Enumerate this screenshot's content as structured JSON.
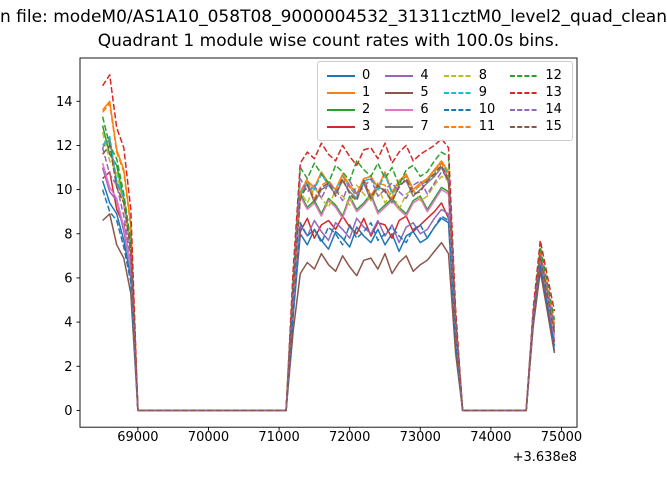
{
  "chart_data": {
    "type": "line",
    "suptitle": "n file: modeM0/AS1A10_058T08_9000004532_31311cztM0_level2_quad_clean",
    "title": "Quadrant 1 module wise count rates with 100.0s bins.",
    "xlabel": "",
    "ylabel": "",
    "x_axis_offset_label": "+3.638e8",
    "xlim": [
      68180,
      75220
    ],
    "ylim": [
      -0.76,
      15.96
    ],
    "xticks": [
      69000,
      70000,
      71000,
      72000,
      73000,
      74000,
      75000
    ],
    "yticks": [
      0,
      2,
      4,
      6,
      8,
      10,
      12,
      14
    ],
    "grid": false,
    "legend": {
      "position": "upper right",
      "columns": 4
    },
    "x": [
      68500,
      68600,
      68700,
      68800,
      68900,
      69000,
      69100,
      69200,
      69300,
      69400,
      69500,
      69600,
      69700,
      69800,
      69900,
      70000,
      70100,
      70200,
      70300,
      70400,
      70500,
      70600,
      70700,
      70800,
      70900,
      71000,
      71100,
      71200,
      71300,
      71400,
      71500,
      71600,
      71700,
      71800,
      71900,
      72000,
      72100,
      72200,
      72300,
      72400,
      72500,
      72600,
      72700,
      72800,
      72900,
      73000,
      73100,
      73200,
      73300,
      73400,
      73500,
      73600,
      73700,
      73800,
      73900,
      74000,
      74100,
      74200,
      74300,
      74400,
      74500,
      74600,
      74700,
      74800,
      74900
    ],
    "series": [
      {
        "name": "0",
        "color": "#1f77b4",
        "linestyle": "solid",
        "values": [
          10.4,
          9.4,
          8.9,
          7.7,
          6.0,
          0,
          0,
          0,
          0,
          0,
          0,
          0,
          0,
          0,
          0,
          0,
          0,
          0,
          0,
          0,
          0,
          0,
          0,
          0,
          0,
          0,
          0,
          4.3,
          8.0,
          7.5,
          8.2,
          7.7,
          7.3,
          8.1,
          7.8,
          7.4,
          8.3,
          7.9,
          7.6,
          8.2,
          7.5,
          8.0,
          7.2,
          7.9,
          8.1,
          7.6,
          7.8,
          8.3,
          8.7,
          8.5,
          3.1,
          0,
          0,
          0,
          0,
          0,
          0,
          0,
          0,
          0,
          0,
          4.0,
          6.6,
          4.7,
          2.7
        ]
      },
      {
        "name": "1",
        "color": "#ff7f0e",
        "linestyle": "solid",
        "values": [
          13.6,
          14.0,
          11.8,
          10.9,
          8.4,
          0,
          0,
          0,
          0,
          0,
          0,
          0,
          0,
          0,
          0,
          0,
          0,
          0,
          0,
          0,
          0,
          0,
          0,
          0,
          0,
          0,
          0,
          5.7,
          9.9,
          10.4,
          10.1,
          10.8,
          10.3,
          10.0,
          10.7,
          10.2,
          9.8,
          10.5,
          10.6,
          10.1,
          10.8,
          9.9,
          10.4,
          10.7,
          10.0,
          10.3,
          10.5,
          10.9,
          11.3,
          10.8,
          4.1,
          0,
          0,
          0,
          0,
          0,
          0,
          0,
          0,
          0,
          0,
          4.3,
          7.2,
          5.6,
          3.9
        ]
      },
      {
        "name": "2",
        "color": "#2ca02c",
        "linestyle": "solid",
        "values": [
          12.9,
          11.6,
          11.1,
          9.5,
          7.5,
          0,
          0,
          0,
          0,
          0,
          0,
          0,
          0,
          0,
          0,
          0,
          0,
          0,
          0,
          0,
          0,
          0,
          0,
          0,
          0,
          0,
          0,
          5.1,
          9.8,
          9.2,
          9.5,
          8.9,
          9.6,
          9.3,
          8.8,
          9.7,
          9.1,
          9.4,
          9.8,
          9.0,
          9.3,
          9.6,
          9.2,
          8.9,
          9.5,
          9.7,
          9.1,
          9.6,
          10.1,
          9.9,
          3.7,
          0,
          0,
          0,
          0,
          0,
          0,
          0,
          0,
          0,
          0,
          4.1,
          6.9,
          5.2,
          3.5
        ]
      },
      {
        "name": "3",
        "color": "#d62728",
        "linestyle": "solid",
        "values": [
          10.5,
          10.8,
          9.1,
          8.4,
          6.5,
          0,
          0,
          0,
          0,
          0,
          0,
          0,
          0,
          0,
          0,
          0,
          0,
          0,
          0,
          0,
          0,
          0,
          0,
          0,
          0,
          0,
          0,
          4.6,
          8.1,
          8.7,
          7.8,
          8.4,
          8.6,
          8.2,
          8.8,
          8.3,
          8.0,
          8.7,
          7.9,
          8.5,
          8.4,
          7.8,
          8.6,
          8.8,
          8.1,
          8.4,
          8.7,
          9.0,
          9.4,
          8.7,
          3.3,
          0,
          0,
          0,
          0,
          0,
          0,
          0,
          0,
          0,
          0,
          4.0,
          6.7,
          4.9,
          3.1
        ]
      },
      {
        "name": "4",
        "color": "#9467bd",
        "linestyle": "solid",
        "values": [
          11.0,
          9.9,
          9.5,
          8.1,
          6.4,
          0,
          0,
          0,
          0,
          0,
          0,
          0,
          0,
          0,
          0,
          0,
          0,
          0,
          0,
          0,
          0,
          0,
          0,
          0,
          0,
          0,
          0,
          4.5,
          8.4,
          7.9,
          8.6,
          8.1,
          7.7,
          8.5,
          8.2,
          7.8,
          8.7,
          8.3,
          8.0,
          8.6,
          7.9,
          8.4,
          7.6,
          8.3,
          8.5,
          8.0,
          8.2,
          8.7,
          9.1,
          8.9,
          3.3,
          0,
          0,
          0,
          0,
          0,
          0,
          0,
          0,
          0,
          0,
          4.1,
          6.8,
          5.0,
          3.2
        ]
      },
      {
        "name": "5",
        "color": "#8c564b",
        "linestyle": "solid",
        "values": [
          8.6,
          8.9,
          7.5,
          6.9,
          5.3,
          0,
          0,
          0,
          0,
          0,
          0,
          0,
          0,
          0,
          0,
          0,
          0,
          0,
          0,
          0,
          0,
          0,
          0,
          0,
          0,
          0,
          0,
          3.6,
          6.2,
          6.7,
          6.4,
          7.1,
          6.6,
          6.3,
          7.0,
          6.5,
          6.1,
          6.8,
          6.9,
          6.4,
          7.1,
          6.2,
          6.7,
          7.0,
          6.3,
          6.6,
          6.8,
          7.2,
          7.6,
          7.1,
          2.6,
          0,
          0,
          0,
          0,
          0,
          0,
          0,
          0,
          0,
          0,
          3.8,
          6.3,
          4.5,
          2.6
        ]
      },
      {
        "name": "6",
        "color": "#e377c2",
        "linestyle": "solid",
        "values": [
          11.2,
          10.1,
          9.6,
          8.3,
          6.5,
          0,
          0,
          0,
          0,
          0,
          0,
          0,
          0,
          0,
          0,
          0,
          0,
          0,
          0,
          0,
          0,
          0,
          0,
          0,
          0,
          0,
          0,
          5.1,
          9.7,
          9.1,
          9.4,
          8.8,
          9.5,
          9.2,
          8.7,
          9.6,
          9.0,
          9.3,
          9.7,
          8.9,
          9.2,
          9.5,
          9.1,
          8.8,
          9.4,
          9.6,
          9.0,
          9.5,
          10.0,
          9.8,
          3.7,
          0,
          0,
          0,
          0,
          0,
          0,
          0,
          0,
          0,
          0,
          4.1,
          6.9,
          5.2,
          3.4
        ]
      },
      {
        "name": "7",
        "color": "#7f7f7f",
        "linestyle": "solid",
        "values": [
          11.9,
          12.3,
          10.3,
          9.6,
          7.4,
          0,
          0,
          0,
          0,
          0,
          0,
          0,
          0,
          0,
          0,
          0,
          0,
          0,
          0,
          0,
          0,
          0,
          0,
          0,
          0,
          0,
          0,
          5.4,
          9.7,
          10.3,
          9.4,
          10.0,
          10.2,
          9.8,
          10.4,
          9.9,
          9.6,
          10.3,
          9.5,
          10.1,
          10.0,
          9.4,
          10.2,
          10.4,
          9.7,
          10.0,
          10.3,
          10.6,
          11.0,
          10.3,
          4.0,
          0,
          0,
          0,
          0,
          0,
          0,
          0,
          0,
          0,
          0,
          4.3,
          7.1,
          5.4,
          3.7
        ]
      },
      {
        "name": "8",
        "color": "#bcbd22",
        "linestyle": "dashed",
        "values": [
          12.6,
          11.3,
          10.8,
          9.3,
          7.3,
          0,
          0,
          0,
          0,
          0,
          0,
          0,
          0,
          0,
          0,
          0,
          0,
          0,
          0,
          0,
          0,
          0,
          0,
          0,
          0,
          0,
          0,
          5.3,
          9.9,
          9.4,
          10.1,
          9.6,
          9.2,
          10.0,
          9.7,
          9.3,
          10.2,
          9.8,
          9.5,
          10.1,
          9.4,
          9.9,
          9.1,
          9.8,
          10.0,
          9.5,
          9.7,
          10.2,
          10.6,
          10.4,
          3.9,
          0,
          0,
          0,
          0,
          0,
          0,
          0,
          0,
          0,
          0,
          4.2,
          7.0,
          5.3,
          3.6
        ]
      },
      {
        "name": "9",
        "color": "#17becf",
        "linestyle": "dashed",
        "values": [
          12.0,
          12.4,
          10.4,
          9.7,
          7.4,
          0,
          0,
          0,
          0,
          0,
          0,
          0,
          0,
          0,
          0,
          0,
          0,
          0,
          0,
          0,
          0,
          0,
          0,
          0,
          0,
          0,
          0,
          5.6,
          9.8,
          10.3,
          10.0,
          10.7,
          10.2,
          9.9,
          10.6,
          10.1,
          9.7,
          10.4,
          10.5,
          10.0,
          10.7,
          9.8,
          10.3,
          10.6,
          9.9,
          10.2,
          10.4,
          10.8,
          11.2,
          10.7,
          4.1,
          0,
          0,
          0,
          0,
          0,
          0,
          0,
          0,
          0,
          0,
          4.2,
          7.1,
          5.5,
          3.8
        ]
      },
      {
        "name": "10",
        "color": "#1f77b4",
        "linestyle": "dashed",
        "values": [
          10.0,
          9.0,
          8.6,
          7.4,
          5.8,
          0,
          0,
          0,
          0,
          0,
          0,
          0,
          0,
          0,
          0,
          0,
          0,
          0,
          0,
          0,
          0,
          0,
          0,
          0,
          0,
          0,
          0,
          4.4,
          8.5,
          7.9,
          8.2,
          7.6,
          8.3,
          8.0,
          7.5,
          8.4,
          7.8,
          8.1,
          8.5,
          7.7,
          8.0,
          8.3,
          7.9,
          7.6,
          8.2,
          8.4,
          7.8,
          8.3,
          8.8,
          8.6,
          3.2,
          0,
          0,
          0,
          0,
          0,
          0,
          0,
          0,
          0,
          0,
          4.0,
          6.6,
          4.8,
          2.9
        ]
      },
      {
        "name": "11",
        "color": "#ff7f0e",
        "linestyle": "dashed",
        "values": [
          13.5,
          13.9,
          11.7,
          10.8,
          8.3,
          0,
          0,
          0,
          0,
          0,
          0,
          0,
          0,
          0,
          0,
          0,
          0,
          0,
          0,
          0,
          0,
          0,
          0,
          0,
          0,
          0,
          0,
          5.6,
          9.9,
          10.5,
          9.6,
          10.2,
          10.4,
          10.0,
          10.6,
          10.1,
          9.8,
          10.5,
          9.7,
          10.3,
          10.2,
          9.6,
          10.4,
          10.6,
          9.9,
          10.2,
          10.5,
          10.8,
          11.2,
          10.5,
          4.0,
          0,
          0,
          0,
          0,
          0,
          0,
          0,
          0,
          0,
          0,
          4.3,
          7.2,
          5.5,
          3.8
        ]
      },
      {
        "name": "12",
        "color": "#2ca02c",
        "linestyle": "dashed",
        "values": [
          13.3,
          12.0,
          11.4,
          9.8,
          7.7,
          0,
          0,
          0,
          0,
          0,
          0,
          0,
          0,
          0,
          0,
          0,
          0,
          0,
          0,
          0,
          0,
          0,
          0,
          0,
          0,
          0,
          0,
          5.9,
          11.0,
          10.5,
          11.2,
          10.7,
          10.3,
          11.1,
          10.8,
          10.4,
          11.3,
          10.9,
          10.6,
          11.2,
          10.5,
          11.0,
          10.2,
          10.9,
          11.1,
          10.6,
          10.8,
          11.3,
          11.7,
          11.5,
          4.3,
          0,
          0,
          0,
          0,
          0,
          0,
          0,
          0,
          0,
          0,
          4.4,
          7.4,
          5.8,
          4.1
        ]
      },
      {
        "name": "13",
        "color": "#d62728",
        "linestyle": "dashed",
        "values": [
          14.7,
          15.2,
          12.8,
          11.9,
          9.1,
          0,
          0,
          0,
          0,
          0,
          0,
          0,
          0,
          0,
          0,
          0,
          0,
          0,
          0,
          0,
          0,
          0,
          0,
          0,
          0,
          0,
          0,
          6.4,
          11.2,
          11.7,
          11.4,
          12.1,
          11.6,
          11.3,
          12.0,
          11.5,
          11.1,
          11.8,
          11.9,
          11.4,
          12.1,
          11.2,
          11.7,
          12.0,
          11.3,
          11.6,
          11.8,
          12.0,
          12.3,
          11.9,
          4.6,
          0,
          0,
          0,
          0,
          0,
          0,
          0,
          0,
          0,
          0,
          4.6,
          7.7,
          6.1,
          4.5
        ]
      },
      {
        "name": "14",
        "color": "#9467bd",
        "linestyle": "dashed",
        "values": [
          11.9,
          10.7,
          10.2,
          8.8,
          6.9,
          0,
          0,
          0,
          0,
          0,
          0,
          0,
          0,
          0,
          0,
          0,
          0,
          0,
          0,
          0,
          0,
          0,
          0,
          0,
          0,
          0,
          0,
          5.5,
          10.5,
          9.9,
          10.2,
          9.6,
          10.3,
          10.0,
          9.5,
          10.4,
          9.8,
          10.1,
          10.5,
          9.7,
          10.0,
          10.3,
          9.9,
          9.6,
          10.2,
          10.4,
          9.8,
          10.3,
          10.8,
          10.6,
          4.0,
          0,
          0,
          0,
          0,
          0,
          0,
          0,
          0,
          0,
          0,
          4.3,
          7.0,
          5.4,
          3.7
        ]
      },
      {
        "name": "15",
        "color": "#8c564b",
        "linestyle": "dashed",
        "values": [
          11.6,
          12.0,
          10.1,
          9.4,
          7.2,
          0,
          0,
          0,
          0,
          0,
          0,
          0,
          0,
          0,
          0,
          0,
          0,
          0,
          0,
          0,
          0,
          0,
          0,
          0,
          0,
          0,
          0,
          5.4,
          9.6,
          10.2,
          9.5,
          10.1,
          10.3,
          9.7,
          10.5,
          9.8,
          9.5,
          10.4,
          9.6,
          10.2,
          9.9,
          9.5,
          10.1,
          10.5,
          9.8,
          9.9,
          10.4,
          10.7,
          11.1,
          10.4,
          4.0,
          0,
          0,
          0,
          0,
          0,
          0,
          0,
          0,
          0,
          0,
          4.1,
          7.0,
          5.2,
          3.5
        ]
      }
    ]
  }
}
